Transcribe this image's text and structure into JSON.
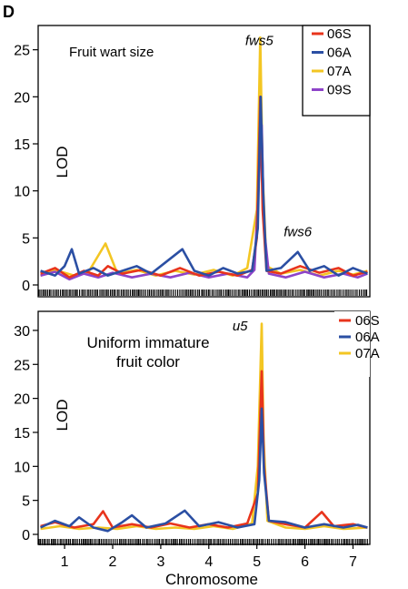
{
  "panel_letter": "D",
  "xlabel": "Chromosome",
  "colors": {
    "06S": "#e8341c",
    "06A": "#2b4fa3",
    "07A": "#f3c623",
    "09S": "#8e44c9"
  },
  "chart_data": [
    {
      "type": "line",
      "title": "Fruit wart size",
      "ylabel": "LOD",
      "ylim": [
        0,
        27
      ],
      "yticks": [
        0,
        5,
        10,
        15,
        20,
        25
      ],
      "xlim": [
        0.45,
        7.35
      ],
      "xticks": [
        1,
        2,
        3,
        4,
        5,
        6,
        7
      ],
      "grid": false,
      "legend_position": "top-right",
      "annotations": [
        {
          "text": "fws5",
          "x": 5.05,
          "y": 25.5
        },
        {
          "text": "fws6",
          "x": 5.85,
          "y": 5.2
        }
      ],
      "series": [
        {
          "name": "06S",
          "color": "#e8341c",
          "points": [
            [
              0.5,
              1.2
            ],
            [
              0.8,
              1.8
            ],
            [
              1.1,
              0.8
            ],
            [
              1.4,
              1.5
            ],
            [
              1.7,
              1.0
            ],
            [
              1.9,
              2.0
            ],
            [
              2.2,
              1.2
            ],
            [
              2.6,
              1.6
            ],
            [
              3.0,
              1.0
            ],
            [
              3.4,
              1.8
            ],
            [
              3.8,
              1.0
            ],
            [
              4.2,
              1.4
            ],
            [
              4.6,
              1.0
            ],
            [
              4.9,
              1.6
            ],
            [
              5.0,
              5.0
            ],
            [
              5.07,
              20.0
            ],
            [
              5.12,
              8.0
            ],
            [
              5.2,
              1.5
            ],
            [
              5.5,
              1.2
            ],
            [
              5.9,
              2.0
            ],
            [
              6.3,
              1.3
            ],
            [
              6.7,
              1.8
            ],
            [
              7.0,
              1.0
            ],
            [
              7.3,
              1.4
            ]
          ]
        },
        {
          "name": "06A",
          "color": "#2b4fa3",
          "points": [
            [
              0.5,
              1.5
            ],
            [
              0.8,
              1.0
            ],
            [
              1.0,
              2.0
            ],
            [
              1.15,
              3.8
            ],
            [
              1.3,
              1.2
            ],
            [
              1.6,
              1.8
            ],
            [
              1.9,
              1.0
            ],
            [
              2.2,
              1.5
            ],
            [
              2.5,
              2.0
            ],
            [
              2.8,
              1.2
            ],
            [
              3.1,
              2.4
            ],
            [
              3.45,
              3.8
            ],
            [
              3.7,
              1.5
            ],
            [
              4.0,
              1.0
            ],
            [
              4.3,
              1.8
            ],
            [
              4.6,
              1.2
            ],
            [
              4.9,
              1.5
            ],
            [
              5.02,
              6.0
            ],
            [
              5.08,
              20.0
            ],
            [
              5.13,
              10.0
            ],
            [
              5.2,
              1.5
            ],
            [
              5.5,
              1.8
            ],
            [
              5.85,
              3.5
            ],
            [
              6.1,
              1.5
            ],
            [
              6.4,
              2.0
            ],
            [
              6.7,
              1.0
            ],
            [
              7.0,
              1.8
            ],
            [
              7.3,
              1.2
            ]
          ]
        },
        {
          "name": "07A",
          "color": "#f3c623",
          "points": [
            [
              0.5,
              1.0
            ],
            [
              0.8,
              1.6
            ],
            [
              1.2,
              1.0
            ],
            [
              1.5,
              1.4
            ],
            [
              1.85,
              4.4
            ],
            [
              2.1,
              1.2
            ],
            [
              2.5,
              1.6
            ],
            [
              2.9,
              1.0
            ],
            [
              3.3,
              1.5
            ],
            [
              3.7,
              1.1
            ],
            [
              4.1,
              1.6
            ],
            [
              4.5,
              1.0
            ],
            [
              4.8,
              1.8
            ],
            [
              5.0,
              8.0
            ],
            [
              5.07,
              26.3
            ],
            [
              5.12,
              12.0
            ],
            [
              5.2,
              2.0
            ],
            [
              5.5,
              1.2
            ],
            [
              5.9,
              1.6
            ],
            [
              6.3,
              1.0
            ],
            [
              6.7,
              1.5
            ],
            [
              7.0,
              1.1
            ],
            [
              7.3,
              1.5
            ]
          ]
        },
        {
          "name": "09S",
          "color": "#8e44c9",
          "points": [
            [
              0.5,
              1.0
            ],
            [
              0.8,
              1.4
            ],
            [
              1.1,
              0.6
            ],
            [
              1.4,
              1.2
            ],
            [
              1.7,
              0.8
            ],
            [
              2.0,
              1.3
            ],
            [
              2.4,
              0.8
            ],
            [
              2.8,
              1.2
            ],
            [
              3.2,
              0.8
            ],
            [
              3.6,
              1.3
            ],
            [
              4.0,
              0.8
            ],
            [
              4.4,
              1.2
            ],
            [
              4.8,
              0.8
            ],
            [
              4.95,
              1.6
            ],
            [
              5.05,
              12.0
            ],
            [
              5.1,
              17.0
            ],
            [
              5.15,
              6.0
            ],
            [
              5.25,
              1.2
            ],
            [
              5.6,
              0.8
            ],
            [
              6.0,
              1.4
            ],
            [
              6.4,
              0.8
            ],
            [
              6.8,
              1.2
            ],
            [
              7.1,
              0.8
            ],
            [
              7.3,
              1.2
            ]
          ]
        }
      ]
    },
    {
      "type": "line",
      "title": "Uniform immature fruit color",
      "title_lines": [
        "Uniform immature",
        "fruit color"
      ],
      "ylabel": "LOD",
      "ylim": [
        0,
        32
      ],
      "yticks": [
        0,
        5,
        10,
        15,
        20,
        25,
        30
      ],
      "xlim": [
        0.45,
        7.35
      ],
      "xticks": [
        1,
        2,
        3,
        4,
        5,
        6,
        7
      ],
      "xticklabels": [
        "1",
        "2",
        "3",
        "4",
        "5",
        "6",
        "7"
      ],
      "grid": false,
      "legend_position": "top-right",
      "annotations": [
        {
          "text": "u5",
          "x": 4.65,
          "y": 30.0
        }
      ],
      "series": [
        {
          "name": "06S",
          "color": "#e8341c",
          "points": [
            [
              0.5,
              1.2
            ],
            [
              0.8,
              1.8
            ],
            [
              1.2,
              1.0
            ],
            [
              1.6,
              1.5
            ],
            [
              1.8,
              3.4
            ],
            [
              2.0,
              1.0
            ],
            [
              2.4,
              1.5
            ],
            [
              2.8,
              1.0
            ],
            [
              3.2,
              1.6
            ],
            [
              3.6,
              1.0
            ],
            [
              4.0,
              1.5
            ],
            [
              4.4,
              1.0
            ],
            [
              4.8,
              1.6
            ],
            [
              5.02,
              6.0
            ],
            [
              5.1,
              24.0
            ],
            [
              5.15,
              10.0
            ],
            [
              5.25,
              2.0
            ],
            [
              5.6,
              1.5
            ],
            [
              6.0,
              1.0
            ],
            [
              6.35,
              3.3
            ],
            [
              6.6,
              1.2
            ],
            [
              7.0,
              1.5
            ],
            [
              7.3,
              1.0
            ]
          ]
        },
        {
          "name": "06A",
          "color": "#2b4fa3",
          "points": [
            [
              0.5,
              1.0
            ],
            [
              0.8,
              2.0
            ],
            [
              1.1,
              1.2
            ],
            [
              1.3,
              2.5
            ],
            [
              1.6,
              1.0
            ],
            [
              1.9,
              0.5
            ],
            [
              2.2,
              1.8
            ],
            [
              2.4,
              2.8
            ],
            [
              2.7,
              1.0
            ],
            [
              3.1,
              1.6
            ],
            [
              3.5,
              3.5
            ],
            [
              3.8,
              1.2
            ],
            [
              4.2,
              1.8
            ],
            [
              4.6,
              1.0
            ],
            [
              4.95,
              1.5
            ],
            [
              5.05,
              8.0
            ],
            [
              5.1,
              18.5
            ],
            [
              5.15,
              9.0
            ],
            [
              5.25,
              2.0
            ],
            [
              5.6,
              1.8
            ],
            [
              6.0,
              1.0
            ],
            [
              6.4,
              1.5
            ],
            [
              6.8,
              1.0
            ],
            [
              7.1,
              1.4
            ],
            [
              7.3,
              1.0
            ]
          ]
        },
        {
          "name": "07A",
          "color": "#f3c623",
          "points": [
            [
              0.5,
              0.8
            ],
            [
              0.9,
              1.2
            ],
            [
              1.3,
              0.8
            ],
            [
              1.7,
              1.0
            ],
            [
              2.1,
              0.8
            ],
            [
              2.5,
              1.2
            ],
            [
              2.9,
              0.8
            ],
            [
              3.3,
              1.0
            ],
            [
              3.7,
              0.8
            ],
            [
              4.1,
              1.2
            ],
            [
              4.5,
              0.8
            ],
            [
              4.9,
              1.6
            ],
            [
              5.02,
              10.0
            ],
            [
              5.1,
              31.0
            ],
            [
              5.14,
              14.0
            ],
            [
              5.22,
              2.0
            ],
            [
              5.6,
              1.0
            ],
            [
              6.0,
              0.8
            ],
            [
              6.4,
              1.2
            ],
            [
              6.8,
              0.8
            ],
            [
              7.3,
              1.0
            ]
          ]
        }
      ]
    }
  ]
}
